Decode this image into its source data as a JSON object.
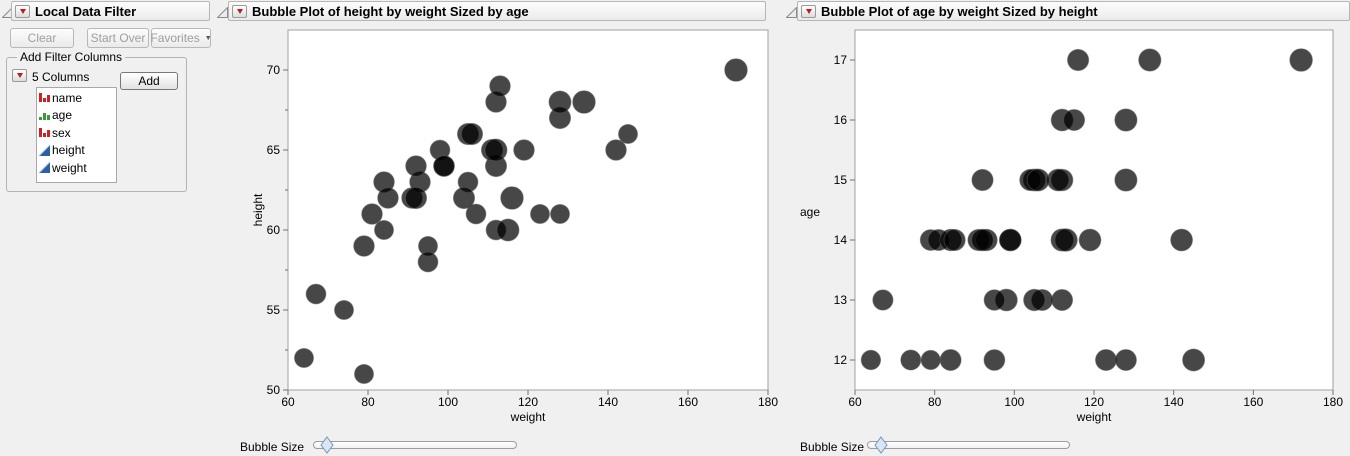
{
  "window": {
    "background": "#f0f0f0"
  },
  "filter_panel": {
    "title": "Local Data Filter",
    "clear_button": "Clear",
    "start_over_button": "Start Over",
    "favorites_button": "Favorites",
    "group_title": "Add Filter Columns",
    "columns_summary": "5 Columns",
    "add_button": "Add",
    "columns": [
      {
        "name": "name",
        "type": "nominal"
      },
      {
        "name": "age",
        "type": "ordinal"
      },
      {
        "name": "sex",
        "type": "nominal"
      },
      {
        "name": "height",
        "type": "continuous"
      },
      {
        "name": "weight",
        "type": "continuous"
      }
    ]
  },
  "colors": {
    "background": "#f0f0f0",
    "accent_red": "#b51f1f",
    "bubble_fill": "#000000",
    "bubble_opacity": 0.72,
    "bubble_stroke": "#5a5a5a",
    "frame_stroke": "#a0a0a0",
    "tick_stroke": "#707070",
    "nominal_icon": "#cc2222",
    "ordinal_icon": "#3a9a3a",
    "continuous_icon": "#2e5fa3",
    "slider_thumb_fill": "#d8e6f4",
    "slider_thumb_stroke": "#7796b5"
  },
  "dataset": {
    "columns": [
      "weight",
      "height",
      "age"
    ],
    "rows": [
      [
        95,
        59,
        12
      ],
      [
        123,
        61,
        12
      ],
      [
        74,
        55,
        12
      ],
      [
        145,
        66,
        12
      ],
      [
        64,
        52,
        12
      ],
      [
        84,
        60,
        12
      ],
      [
        128,
        61,
        12
      ],
      [
        79,
        51,
        12
      ],
      [
        112,
        60,
        13
      ],
      [
        107,
        61,
        13
      ],
      [
        67,
        56,
        13
      ],
      [
        98,
        65,
        13
      ],
      [
        105,
        63,
        13
      ],
      [
        95,
        58,
        13
      ],
      [
        79,
        59,
        14
      ],
      [
        81,
        61,
        14
      ],
      [
        91,
        62,
        14
      ],
      [
        142,
        65,
        14
      ],
      [
        84,
        63,
        14
      ],
      [
        85,
        62,
        14
      ],
      [
        93,
        63,
        14
      ],
      [
        99,
        64,
        14
      ],
      [
        119,
        65,
        14
      ],
      [
        92,
        64,
        14
      ],
      [
        112,
        68,
        14
      ],
      [
        99,
        64,
        14
      ],
      [
        113,
        69,
        14
      ],
      [
        92,
        62,
        15
      ],
      [
        112,
        64,
        15
      ],
      [
        128,
        67,
        15
      ],
      [
        111,
        65,
        15
      ],
      [
        105,
        66,
        15
      ],
      [
        104,
        62,
        15
      ],
      [
        106,
        66,
        15
      ],
      [
        112,
        65,
        16
      ],
      [
        115,
        60,
        16
      ],
      [
        128,
        68,
        16
      ],
      [
        116,
        62,
        17
      ],
      [
        134,
        68,
        17
      ],
      [
        172,
        70,
        17
      ]
    ]
  },
  "chart_data": [
    {
      "type": "bubble",
      "title": "Bubble Plot of height by weight Sized by age",
      "xlabel": "weight",
      "ylabel": "height",
      "x_field": "weight",
      "y_field": "height",
      "size_field": "age",
      "xlim": [
        60,
        180
      ],
      "ylim": [
        50,
        72.5
      ],
      "xticks": [
        60,
        80,
        100,
        120,
        140,
        160,
        180
      ],
      "yticks": [
        50,
        55,
        60,
        65,
        70
      ],
      "yminorticks": [
        52.5,
        57.5,
        62.5,
        67.5
      ],
      "grid": false,
      "legend": "none",
      "slider_label": "Bubble Size"
    },
    {
      "type": "bubble",
      "title": "Bubble Plot of age by weight Sized by height",
      "xlabel": "weight",
      "ylabel": "age",
      "x_field": "weight",
      "y_field": "age",
      "size_field": "height",
      "xlim": [
        60,
        180
      ],
      "ylim": [
        11.5,
        17.5
      ],
      "xticks": [
        60,
        80,
        100,
        120,
        140,
        160,
        180
      ],
      "yticks": [
        12,
        13,
        14,
        15,
        16,
        17
      ],
      "yminorticks": [],
      "grid": false,
      "legend": "none",
      "slider_label": "Bubble Size"
    }
  ]
}
